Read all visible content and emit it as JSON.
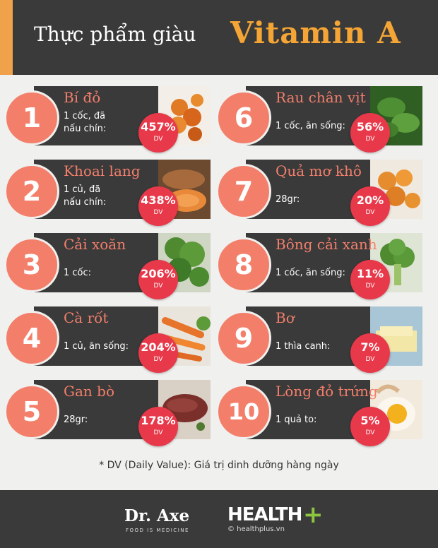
{
  "header": {
    "title_pre": "Thực phẩm giàu",
    "title_main": "Vitamin A"
  },
  "items": [
    {
      "number": "1",
      "name": "Bí đỏ",
      "desc": [
        "1 cốc, đã",
        "nấu chín:"
      ],
      "dv": "457%",
      "photo": "pumpkin-photo",
      "photo_bg": "#d4752b"
    },
    {
      "number": "2",
      "name": "Khoai lang",
      "desc": [
        "1 củ, đã",
        "nấu chín:"
      ],
      "dv": "438%",
      "photo": "sweet-potato-photo",
      "photo_bg": "#b8713c"
    },
    {
      "number": "3",
      "name": "Cải xoăn",
      "desc": [
        "1 cốc:"
      ],
      "dv": "206%",
      "photo": "kale-photo",
      "photo_bg": "#5f8f3a"
    },
    {
      "number": "4",
      "name": "Cà rốt",
      "desc": [
        "1 củ, ăn sống:"
      ],
      "dv": "204%",
      "photo": "carrot-photo",
      "photo_bg": "#e0782a"
    },
    {
      "number": "5",
      "name": "Gan bò",
      "desc": [
        "28gr:"
      ],
      "dv": "178%",
      "photo": "beef-liver-photo",
      "photo_bg": "#7a3b33"
    },
    {
      "number": "6",
      "name": "Rau chân vịt",
      "desc": [
        "1 cốc, ăn sống:"
      ],
      "dv": "56%",
      "photo": "spinach-photo",
      "photo_bg": "#3f7a2c"
    },
    {
      "number": "7",
      "name": "Quả mơ khô",
      "desc": [
        "28gr:"
      ],
      "dv": "20%",
      "photo": "dried-apricot-photo",
      "photo_bg": "#e59a3a"
    },
    {
      "number": "8",
      "name": "Bông cải xanh",
      "desc": [
        "1 cốc, ăn sống:"
      ],
      "dv": "11%",
      "photo": "broccoli-photo",
      "photo_bg": "#5c9a3a"
    },
    {
      "number": "9",
      "name": "Bơ",
      "desc": [
        "1 thìa canh:"
      ],
      "dv": "7%",
      "photo": "butter-photo",
      "photo_bg": "#c9b98a"
    },
    {
      "number": "10",
      "name": "Lòng đỏ trứng",
      "desc": [
        "1 quả to:"
      ],
      "dv": "5%",
      "photo": "egg-yolk-photo",
      "photo_bg": "#e9d6b6"
    }
  ],
  "dv_label": "DV",
  "footnote": "* DV (Daily Value): Giá trị dinh dưỡng hàng ngày",
  "footer": {
    "brand1": "Dr. Axe",
    "brand1_sub": "FOOD IS MEDICINE",
    "brand2": "HEALTH",
    "brand2_plus": "+",
    "brand2_url": "© healthplus.vn"
  },
  "colors": {
    "header_bg": "#3a3a3a",
    "accent_orange": "#f4a535",
    "number_circle": "#f37f6b",
    "dv_circle": "#e8394a",
    "plus_green": "#8cc63f"
  }
}
